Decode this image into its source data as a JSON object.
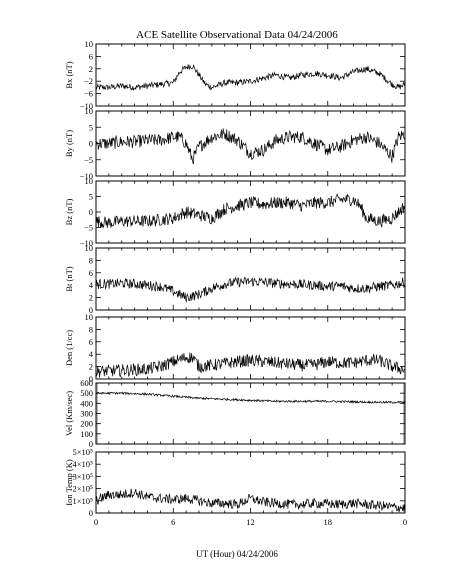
{
  "title": "ACE Satellite Observational Data   04/24/2006",
  "xlabel": "UT (Hour)   04/24/2006",
  "x_ticks": [
    "0",
    "6",
    "12",
    "18",
    "0"
  ],
  "chart_data": [
    {
      "type": "line",
      "ylabel": "Bx (nT)",
      "ylim": [
        -10,
        10
      ],
      "yticks": [
        -10,
        -6,
        -2,
        2,
        6,
        10
      ],
      "ytick_labels": [
        "−10",
        "−6",
        "−2",
        "2",
        "6",
        "10"
      ],
      "x": [
        0,
        1,
        2,
        3,
        4,
        5,
        6,
        6.5,
        7,
        7.5,
        8,
        8.5,
        9,
        10,
        11,
        12,
        13,
        14,
        15,
        16,
        17,
        18,
        19,
        20,
        21,
        22,
        23,
        23.5,
        24
      ],
      "values": [
        -4,
        -4,
        -3.5,
        -4,
        -3.5,
        -3,
        -2.5,
        1,
        2.5,
        3,
        0,
        -3,
        -4,
        -2.5,
        -2.5,
        -2,
        -1,
        0,
        -1,
        0,
        0.5,
        0,
        -1,
        1,
        2,
        0.5,
        -3,
        -4,
        -3
      ],
      "noise_amplitude": 1.0
    },
    {
      "type": "line",
      "ylabel": "By (nT)",
      "ylim": [
        -10,
        10
      ],
      "yticks": [
        -10,
        -5,
        0,
        5,
        10
      ],
      "ytick_labels": [
        "−10",
        "−5",
        "0",
        "5",
        "10"
      ],
      "x": [
        0,
        1,
        2,
        3,
        4,
        5,
        6,
        6.5,
        7,
        7.5,
        8,
        9,
        10,
        11,
        12,
        13,
        14,
        15,
        16,
        17,
        18,
        19,
        20,
        21,
        22,
        23,
        23.5,
        24
      ],
      "values": [
        0,
        0,
        0.5,
        0.5,
        1,
        1,
        2,
        2,
        0,
        -5,
        -1,
        2,
        3,
        1,
        -3,
        -2,
        1,
        2,
        2,
        0,
        -2,
        -1,
        1,
        2,
        0,
        -4,
        2,
        3
      ],
      "noise_amplitude": 2.0
    },
    {
      "type": "line",
      "ylabel": "Bz (nT)",
      "ylim": [
        -10,
        10
      ],
      "yticks": [
        -10,
        -5,
        0,
        5,
        10
      ],
      "ytick_labels": [
        "−10",
        "−5",
        "0",
        "5",
        "10"
      ],
      "x": [
        0,
        1,
        2,
        3,
        4,
        5,
        6,
        7,
        8,
        9,
        10,
        11,
        12,
        13,
        14,
        15,
        16,
        17,
        18,
        19,
        20,
        20.5,
        21,
        22,
        23,
        24
      ],
      "values": [
        -3,
        -3.5,
        -3,
        -3,
        -3,
        -2.5,
        -2,
        0,
        -1,
        -2,
        1,
        2,
        3,
        2.5,
        3,
        3,
        2,
        3,
        3,
        4,
        4,
        2,
        -2,
        -3,
        -2,
        2
      ],
      "noise_amplitude": 2.0
    },
    {
      "type": "line",
      "ylabel": "Bt (nT)",
      "ylim": [
        0,
        10
      ],
      "yticks": [
        0,
        2,
        4,
        6,
        8,
        10
      ],
      "ytick_labels": [
        "0",
        "2",
        "4",
        "6",
        "8",
        "10"
      ],
      "x": [
        0,
        1,
        2,
        3,
        4,
        5,
        6,
        7,
        8,
        9,
        10,
        11,
        12,
        13,
        14,
        15,
        16,
        17,
        18,
        19,
        20,
        21,
        22,
        23,
        24
      ],
      "values": [
        4.2,
        4.2,
        4.3,
        4.2,
        4,
        3.8,
        3,
        2,
        2.5,
        3.5,
        4.2,
        4.5,
        4.6,
        4.5,
        4.3,
        4.2,
        4.1,
        4,
        3.8,
        3.9,
        3.5,
        3.5,
        3.8,
        4.0,
        4.5
      ],
      "noise_amplitude": 0.8
    },
    {
      "type": "line",
      "ylabel": "Den (1/cc)",
      "ylim": [
        0,
        10
      ],
      "yticks": [
        0,
        2,
        4,
        6,
        8,
        10
      ],
      "ytick_labels": [
        "0",
        "2",
        "4",
        "6",
        "8",
        "10"
      ],
      "x": [
        0,
        1,
        2,
        3,
        4,
        5,
        6,
        7,
        7.5,
        8,
        9,
        10,
        11,
        12,
        13,
        14,
        15,
        16,
        17,
        18,
        19,
        20,
        21,
        22,
        23,
        24
      ],
      "values": [
        1.2,
        1.3,
        1.4,
        1.5,
        1.6,
        2,
        2.8,
        3.5,
        3.5,
        2,
        2.2,
        2.5,
        2.8,
        3.0,
        2.8,
        2.6,
        2.4,
        2.2,
        2.3,
        2.8,
        2.6,
        2.6,
        3.0,
        3.0,
        2.0,
        1.5
      ],
      "noise_amplitude": 1.0
    },
    {
      "type": "line",
      "ylabel": "Vel (Km/sec)",
      "ylim": [
        0,
        600
      ],
      "yticks": [
        0,
        100,
        200,
        300,
        400,
        500,
        600
      ],
      "ytick_labels": [
        "0",
        "100",
        "200",
        "300",
        "400",
        "500",
        "600"
      ],
      "x": [
        0,
        2,
        4,
        6,
        8,
        10,
        12,
        14,
        16,
        18,
        20,
        22,
        24
      ],
      "values": [
        500,
        500,
        490,
        470,
        450,
        440,
        430,
        420,
        420,
        420,
        415,
        410,
        410
      ],
      "noise_amplitude": 10,
      "gap_bars": [
        [
          -0.2,
          0.15
        ],
        [
          23.85,
          24.2
        ]
      ],
      "gap_color": "#b3b3b3"
    },
    {
      "type": "line",
      "ylabel": "Ion Temp (K)",
      "ylim": [
        0,
        500000
      ],
      "yticks": [
        0,
        100000,
        200000,
        300000,
        400000,
        500000
      ],
      "ytick_labels": [
        "0",
        "1×10⁵",
        "2×10⁵",
        "3×10⁵",
        "4×10⁵",
        "5×10⁵"
      ],
      "x": [
        0,
        1,
        2,
        3,
        4,
        5,
        6,
        7,
        8,
        9,
        10,
        11,
        12,
        13,
        14,
        15,
        16,
        17,
        18,
        19,
        20,
        21,
        22,
        23,
        24
      ],
      "values": [
        100000,
        150000,
        150000,
        170000,
        130000,
        120000,
        110000,
        120000,
        100000,
        80000,
        80000,
        70000,
        120000,
        90000,
        80000,
        70000,
        70000,
        80000,
        75000,
        70000,
        80000,
        70000,
        60000,
        50000,
        40000
      ],
      "noise_amplitude": 40000
    }
  ]
}
